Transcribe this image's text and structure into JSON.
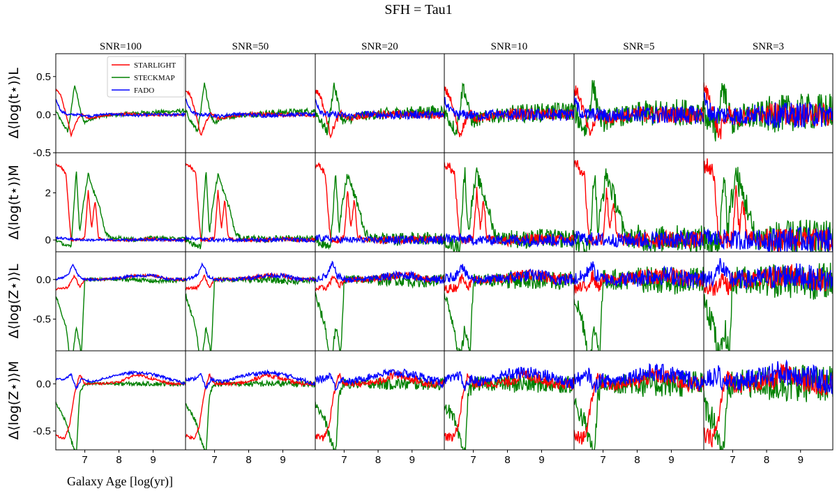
{
  "figure": {
    "suptitle": "SFH = Tau1",
    "xlabel": "Galaxy Age [log(yr)]"
  },
  "colors": {
    "STARLIGHT": "#ff0000",
    "STECKMAP": "#008000",
    "FADO": "#0000ff"
  },
  "chart_data": {
    "type": "line",
    "layout": "grid 4 rows x 6 columns, shared axes",
    "columns": [
      "SNR=100",
      "SNR=50",
      "SNR=20",
      "SNR=10",
      "SNR=5",
      "SNR=3"
    ],
    "rows": [
      {
        "ylabel": "Δ⟨log(t⋆)⟩L",
        "ylim": [
          -0.5,
          0.8
        ],
        "yticks": [
          -0.5,
          0.0,
          0.5
        ]
      },
      {
        "ylabel": "Δ⟨log(t⋆)⟩M",
        "ylim": [
          -0.5,
          3.7
        ],
        "yticks": [
          0,
          2
        ]
      },
      {
        "ylabel": "Δ⟨log(Z⋆)⟩L",
        "ylim": [
          -0.9,
          0.35
        ],
        "yticks": [
          -0.5,
          0.0
        ]
      },
      {
        "ylabel": "Δ⟨log(Z⋆)⟩M",
        "ylim": [
          -0.7,
          0.35
        ],
        "yticks": [
          -0.5,
          0.0
        ]
      }
    ],
    "xlim": [
      6.15,
      9.95
    ],
    "xticks": [
      7,
      8,
      9
    ],
    "legend": {
      "placement": "upper-center of top-left panel",
      "entries": [
        "STARLIGHT",
        "STECKMAP",
        "FADO"
      ]
    },
    "grid": false,
    "series_order": [
      "STECKMAP",
      "STARLIGHT",
      "FADO"
    ],
    "series_profiles": {
      "t_L": {
        "STARLIGHT": {
          "x": [
            6.15,
            6.3,
            6.45,
            6.6,
            6.75,
            6.9,
            7.1,
            7.4,
            7.8,
            8.2,
            8.8,
            9.4,
            9.95
          ],
          "y": [
            0.33,
            0.25,
            0.0,
            -0.27,
            -0.1,
            0.02,
            -0.05,
            -0.03,
            0.0,
            0.01,
            0.0,
            0.0,
            -0.01
          ]
        },
        "STECKMAP": {
          "x": [
            6.15,
            6.3,
            6.5,
            6.6,
            6.7,
            6.8,
            6.9,
            7.0,
            7.2,
            7.5,
            8.0,
            8.5,
            9.0,
            9.5,
            9.95
          ],
          "y": [
            0.05,
            -0.08,
            -0.22,
            0.05,
            0.4,
            0.2,
            -0.02,
            -0.1,
            -0.05,
            -0.02,
            0.0,
            0.02,
            0.03,
            0.04,
            0.05
          ]
        },
        "FADO": {
          "x": [
            6.15,
            6.3,
            6.5,
            6.8,
            7.2,
            7.6,
            8.0,
            8.5,
            9.0,
            9.5,
            9.95
          ],
          "y": [
            0.2,
            0.05,
            0.0,
            0.0,
            -0.02,
            0.01,
            0.0,
            -0.01,
            0.0,
            0.0,
            0.0
          ]
        }
      },
      "t_M": {
        "STARLIGHT": {
          "x": [
            6.15,
            6.3,
            6.45,
            6.55,
            6.6,
            6.8,
            7.0,
            7.1,
            7.2,
            7.3,
            7.4,
            7.6,
            8.0,
            8.5,
            9.0,
            9.5,
            9.95
          ],
          "y": [
            3.2,
            3.1,
            2.8,
            0.8,
            0.0,
            0.0,
            0.1,
            2.1,
            0.5,
            1.7,
            0.1,
            0.0,
            0.0,
            0.0,
            0.05,
            0.0,
            0.0
          ]
        },
        "STECKMAP": {
          "x": [
            6.15,
            6.4,
            6.6,
            6.75,
            6.85,
            6.95,
            7.1,
            7.25,
            7.45,
            7.6,
            7.8,
            8.0,
            8.5,
            9.0,
            9.5,
            9.95
          ],
          "y": [
            0.0,
            -0.2,
            -0.3,
            3.0,
            0.3,
            1.5,
            2.8,
            2.1,
            1.3,
            0.3,
            0.05,
            0.1,
            0.0,
            0.1,
            0.05,
            0.05
          ]
        },
        "FADO": {
          "x": [
            6.15,
            6.5,
            7.0,
            7.5,
            8.0,
            8.5,
            9.0,
            9.5,
            9.95
          ],
          "y": [
            0.1,
            0.05,
            0.0,
            0.0,
            0.0,
            0.0,
            0.02,
            0.0,
            0.0
          ]
        }
      },
      "Z_L": {
        "STARLIGHT": {
          "x": [
            6.15,
            6.5,
            6.7,
            6.85,
            7.0,
            7.5,
            8.0,
            8.5,
            9.0,
            9.5,
            9.95
          ],
          "y": [
            -0.12,
            -0.1,
            0.05,
            -0.1,
            0.0,
            0.0,
            0.02,
            0.05,
            0.05,
            0.0,
            0.0
          ]
        },
        "STECKMAP": {
          "x": [
            6.15,
            6.3,
            6.45,
            6.55,
            6.65,
            6.75,
            6.9,
            7.0,
            7.5,
            8.0,
            8.5,
            9.0,
            9.5,
            9.95
          ],
          "y": [
            -0.2,
            -0.4,
            -0.6,
            -0.95,
            -0.95,
            -0.6,
            -0.95,
            0.0,
            0.0,
            0.0,
            0.0,
            -0.02,
            -0.02,
            0.0
          ]
        },
        "FADO": {
          "x": [
            6.15,
            6.5,
            6.65,
            6.8,
            7.0,
            7.5,
            8.0,
            8.5,
            9.0,
            9.5,
            9.95
          ],
          "y": [
            0.0,
            0.05,
            0.2,
            0.05,
            0.0,
            0.0,
            0.02,
            0.05,
            0.05,
            0.0,
            0.0
          ]
        }
      },
      "Z_M": {
        "STARLIGHT": {
          "x": [
            6.15,
            6.4,
            6.55,
            6.7,
            6.85,
            7.0,
            7.5,
            8.0,
            8.5,
            9.0,
            9.5,
            9.95
          ],
          "y": [
            -0.55,
            -0.58,
            -0.45,
            -0.1,
            0.1,
            0.0,
            0.0,
            0.02,
            0.1,
            0.05,
            0.0,
            0.0
          ]
        },
        "STECKMAP": {
          "x": [
            6.15,
            6.3,
            6.45,
            6.6,
            6.75,
            6.85,
            7.0,
            7.5,
            8.0,
            8.5,
            9.0,
            9.5,
            9.95
          ],
          "y": [
            -0.2,
            -0.3,
            -0.4,
            -0.6,
            -0.75,
            -0.1,
            0.0,
            0.0,
            0.0,
            0.0,
            0.0,
            0.0,
            0.0
          ]
        },
        "FADO": {
          "x": [
            6.15,
            6.4,
            6.6,
            6.75,
            6.9,
            7.2,
            7.5,
            8.0,
            8.5,
            9.0,
            9.5,
            9.95
          ],
          "y": [
            0.05,
            0.05,
            0.1,
            -0.05,
            0.05,
            0.02,
            0.05,
            0.1,
            0.12,
            0.1,
            0.05,
            0.0
          ]
        }
      }
    },
    "row_profiles": [
      "t_L",
      "t_M",
      "Z_L",
      "Z_M"
    ],
    "noise_by_column": [
      0.01,
      0.015,
      0.03,
      0.045,
      0.065,
      0.09
    ]
  }
}
